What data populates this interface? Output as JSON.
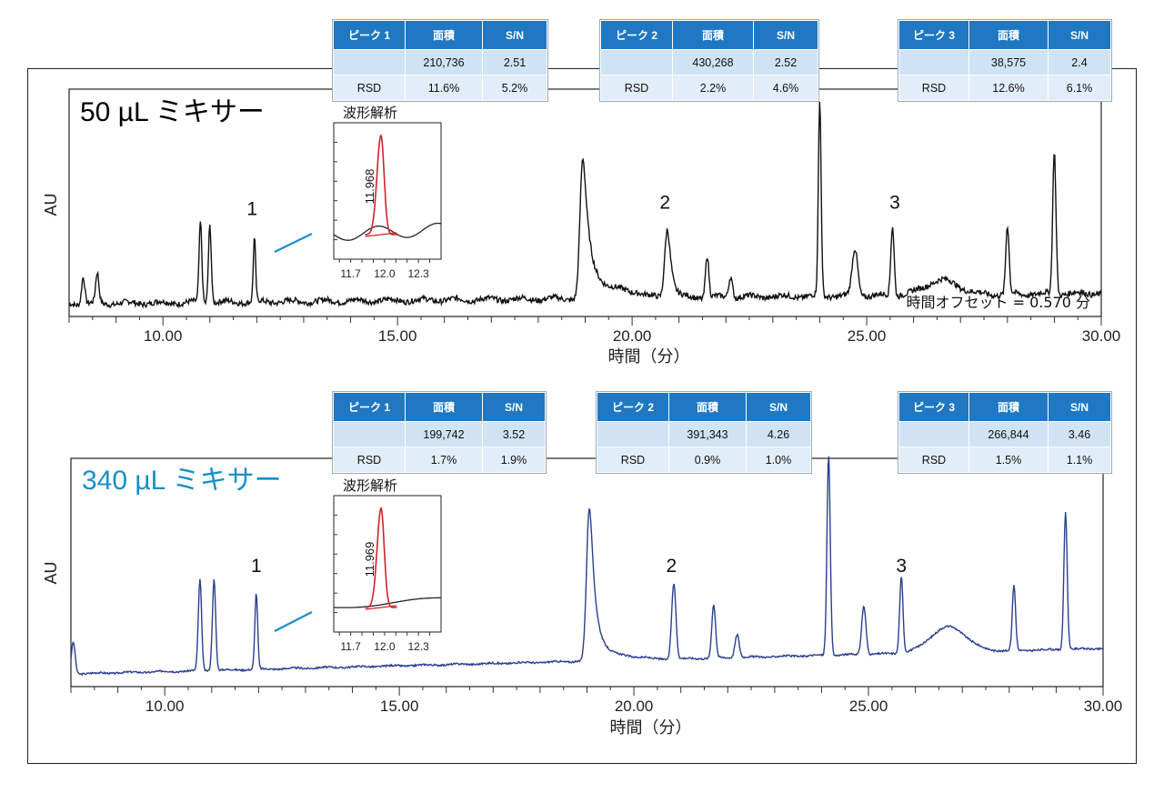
{
  "chart_data": [
    {
      "type": "line",
      "title": "50 µL ミキサー",
      "xlabel": "時間（分）",
      "ylabel": "AU",
      "xlim": [
        8.0,
        30.0
      ],
      "xticks": [
        "10.00",
        "15.00",
        "20.00",
        "25.00",
        "30.00"
      ],
      "line_color": "#111111",
      "title_color": "#000000",
      "annotation": "時間オフセット = 0.570 分",
      "baseline_drift": 0.05,
      "noise": 0.013,
      "peak_labels": [
        {
          "label": "1",
          "x": 11.9
        },
        {
          "label": "2",
          "x": 20.7
        },
        {
          "label": "3",
          "x": 25.6
        }
      ],
      "peaks": [
        {
          "x": 8.3,
          "h": 0.13,
          "w": 0.035
        },
        {
          "x": 8.6,
          "h": 0.14,
          "w": 0.035
        },
        {
          "x": 10.8,
          "h": 0.38,
          "w": 0.03
        },
        {
          "x": 11.0,
          "h": 0.37,
          "w": 0.03
        },
        {
          "x": 11.95,
          "h": 0.3,
          "w": 0.025
        },
        {
          "x": 18.95,
          "h": 0.66,
          "w": 0.06,
          "tail": 0.35
        },
        {
          "x": 20.75,
          "h": 0.33,
          "w": 0.055,
          "tail": 0.2
        },
        {
          "x": 21.6,
          "h": 0.2,
          "w": 0.035
        },
        {
          "x": 22.1,
          "h": 0.1,
          "w": 0.04
        },
        {
          "x": 24.0,
          "h": 0.92,
          "w": 0.03
        },
        {
          "x": 24.75,
          "h": 0.22,
          "w": 0.06
        },
        {
          "x": 25.55,
          "h": 0.33,
          "w": 0.035
        },
        {
          "x": 26.6,
          "h": 0.07,
          "w": 0.35
        },
        {
          "x": 28.0,
          "h": 0.32,
          "w": 0.035
        },
        {
          "x": 29.0,
          "h": 0.68,
          "w": 0.035
        }
      ],
      "inset": {
        "title": "波形解析",
        "retention_label": "11.968",
        "xticks": [
          "11.7",
          "12.0",
          "12.3"
        ],
        "xlim": [
          11.55,
          12.5
        ],
        "peak_x": 11.968,
        "line_color": "#222222",
        "peak_color": "#d0222b",
        "baseline_wavy": true
      },
      "tables": [
        {
          "headers": [
            "ピーク 1",
            "面積",
            "S/N"
          ],
          "row1": [
            "",
            "210,736",
            "2.51"
          ],
          "row2": [
            "RSD",
            "11.6%",
            "5.2%"
          ]
        },
        {
          "headers": [
            "ピーク 2",
            "面積",
            "S/N"
          ],
          "row1": [
            "",
            "430,268",
            "2.52"
          ],
          "row2": [
            "RSD",
            "2.2%",
            "4.6%"
          ]
        },
        {
          "headers": [
            "ピーク 3",
            "面積",
            "S/N"
          ],
          "row1": [
            "",
            "38,575",
            "2.4"
          ],
          "row2": [
            "RSD",
            "12.6%",
            "6.1%"
          ]
        }
      ]
    },
    {
      "type": "line",
      "title": "340 µL ミキサー",
      "xlabel": "時間（分）",
      "ylabel": "AU",
      "xlim": [
        8.0,
        30.0
      ],
      "xticks": [
        "10.00",
        "15.00",
        "20.00",
        "25.00",
        "30.00"
      ],
      "line_color": "#2a3f8f",
      "title_color": "#1a8fc8",
      "baseline_drift": 0.12,
      "noise": 0.004,
      "peak_labels": [
        {
          "label": "1",
          "x": 11.95
        },
        {
          "label": "2",
          "x": 20.8
        },
        {
          "label": "3",
          "x": 25.7
        }
      ],
      "peaks": [
        {
          "x": 8.05,
          "h": 0.15,
          "w": 0.04
        },
        {
          "x": 10.75,
          "h": 0.43,
          "w": 0.035
        },
        {
          "x": 11.05,
          "h": 0.43,
          "w": 0.035
        },
        {
          "x": 11.95,
          "h": 0.36,
          "w": 0.03
        },
        {
          "x": 19.05,
          "h": 0.72,
          "w": 0.06,
          "tail": 0.3
        },
        {
          "x": 20.85,
          "h": 0.36,
          "w": 0.045
        },
        {
          "x": 21.7,
          "h": 0.25,
          "w": 0.04
        },
        {
          "x": 22.2,
          "h": 0.11,
          "w": 0.045
        },
        {
          "x": 24.15,
          "h": 0.95,
          "w": 0.035
        },
        {
          "x": 24.9,
          "h": 0.23,
          "w": 0.045
        },
        {
          "x": 25.7,
          "h": 0.36,
          "w": 0.035
        },
        {
          "x": 26.7,
          "h": 0.12,
          "w": 0.38
        },
        {
          "x": 28.1,
          "h": 0.31,
          "w": 0.035
        },
        {
          "x": 29.2,
          "h": 0.65,
          "w": 0.035
        }
      ],
      "inset": {
        "title": "波形解析",
        "retention_label": "11.969",
        "xticks": [
          "11.7",
          "12.0",
          "12.3"
        ],
        "xlim": [
          11.55,
          12.5
        ],
        "peak_x": 11.969,
        "line_color": "#222222",
        "peak_color": "#d0222b",
        "baseline_wavy": false
      },
      "tables": [
        {
          "headers": [
            "ピーク 1",
            "面積",
            "S/N"
          ],
          "row1": [
            "",
            "199,742",
            "3.52"
          ],
          "row2": [
            "RSD",
            "1.7%",
            "1.9%"
          ]
        },
        {
          "headers": [
            "ピーク 2",
            "面積",
            "S/N"
          ],
          "row1": [
            "",
            "391,343",
            "4.26"
          ],
          "row2": [
            "RSD",
            "0.9%",
            "1.0%"
          ]
        },
        {
          "headers": [
            "ピーク 3",
            "面積",
            "S/N"
          ],
          "row1": [
            "",
            "266,844",
            "3.46"
          ],
          "row2": [
            "RSD",
            "1.5%",
            "1.1%"
          ]
        }
      ]
    }
  ]
}
